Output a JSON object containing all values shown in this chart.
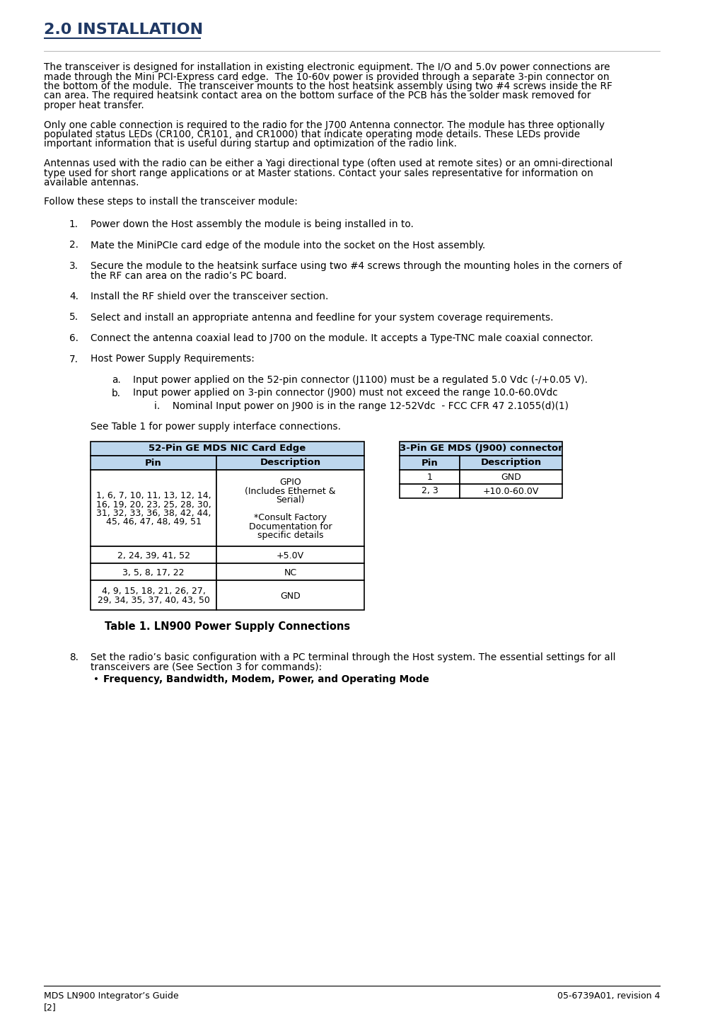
{
  "title": "2.0 INSTALLATION",
  "title_color": "#1F3864",
  "bg_color": "#ffffff",
  "body_font_size": 9.8,
  "paragraphs": [
    "The transceiver is designed for installation in existing electronic equipment. The I/O and 5.0v power connections are\nmade through the Mini PCI-Express card edge.  The 10-60v power is provided through a separate 3-pin connector on\nthe bottom of the module.  The transceiver mounts to the host heatsink assembly using two #4 screws inside the RF\ncan area. The required heatsink contact area on the bottom surface of the PCB has the solder mask removed for\nproper heat transfer.",
    "Only one cable connection is required to the radio for the J700 Antenna connector. The module has three optionally\npopulated status LEDs (CR100, CR101, and CR1000) that indicate operating mode details. These LEDs provide\nimportant information that is useful during startup and optimization of the radio link.",
    "Antennas used with the radio can be either a Yagi directional type (often used at remote sites) or an omni-directional\ntype used for short range applications or at Master stations. Contact your sales representative for information on\navailable antennas.",
    "Follow these steps to install the transceiver module:"
  ],
  "steps": [
    {
      "num": "1.",
      "text": "Power down the Host assembly the module is being installed in to."
    },
    {
      "num": "2.",
      "text": "Mate the MiniPCIe card edge of the module into the socket on the Host assembly."
    },
    {
      "num": "3.",
      "text": "Secure the module to the heatsink surface using two #4 screws through the mounting holes in the corners of\nthe RF can area on the radio’s PC board."
    },
    {
      "num": "4.",
      "text": "Install the RF shield over the transceiver section."
    },
    {
      "num": "5.",
      "text": "Select and install an appropriate antenna and feedline for your system coverage requirements."
    },
    {
      "num": "6.",
      "text": "Connect the antenna coaxial lead to J700 on the module. It accepts a Type-TNC male coaxial connector."
    },
    {
      "num": "7.",
      "text": "Host Power Supply Requirements:"
    }
  ],
  "step7_subs": [
    {
      "letter": "a.",
      "text": "Input power applied on the 52-pin connector (J1100) must be a regulated 5.0 Vdc (-/+0.05 V)."
    },
    {
      "letter": "b.",
      "text": "Input power applied on 3-pin connector (J900) must not exceed the range 10.0-60.0Vdc"
    }
  ],
  "step7_sub_b_i": "i.    Nominal Input power on J900 is in the range 12-52Vdc  - FCC CFR 47 2.1055(d)(1)",
  "table_intro": "See Table 1 for power supply interface connections.",
  "table1_header": "52-Pin GE MDS NIC Card Edge",
  "table1_col1_header": "Pin",
  "table1_col2_header": "Description",
  "table1_rows": [
    {
      "pin": "1, 6, 7, 10, 11, 13, 12, 14,\n16, 19, 20, 23, 25, 28, 30,\n31, 32, 33, 36, 38, 42, 44,\n45, 46, 47, 48, 49, 51",
      "desc": "GPIO\n(Includes Ethernet &\nSerial)\n\n*Consult Factory\nDocumentation for\nspecific details"
    },
    {
      "pin": "2, 24, 39, 41, 52",
      "desc": "+5.0V"
    },
    {
      "pin": "3, 5, 8, 17, 22",
      "desc": "NC"
    },
    {
      "pin": "4, 9, 15, 18, 21, 26, 27,\n29, 34, 35, 37, 40, 43, 50",
      "desc": "GND"
    }
  ],
  "table2_header": "3-Pin GE MDS (J900) connector",
  "table2_col1_header": "Pin",
  "table2_col2_header": "Description",
  "table2_rows": [
    {
      "pin": "1",
      "desc": "GND"
    },
    {
      "pin": "2, 3",
      "desc": "+10.0-60.0V"
    }
  ],
  "table_caption": "Table 1. LN900 Power Supply Connections",
  "step8": {
    "num": "8.",
    "text": "Set the radio’s basic configuration with a PC terminal through the Host system. The essential settings for all\ntransceivers are (See Section 3 for commands):"
  },
  "step8_bullet": "Frequency, Bandwidth, Modem, Power, and Operating Mode",
  "footer_left": "MDS LN900 Integrator’s Guide",
  "footer_right": "05-6739A01, revision 4",
  "footer_page": "[2]",
  "table_header_bg": "#BDD7EE",
  "table_col_header_bg": "#BDD7EE"
}
